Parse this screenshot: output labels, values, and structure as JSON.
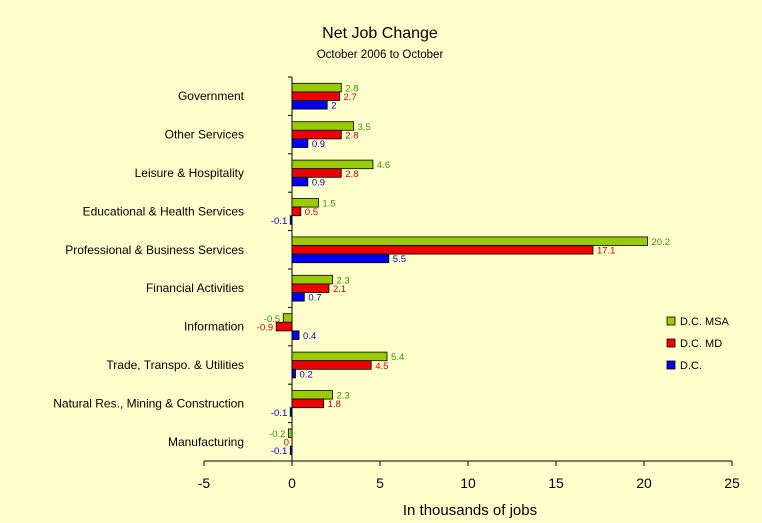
{
  "chart_data": {
    "type": "bar",
    "orientation": "horizontal",
    "title": "Net Job Change",
    "subtitle": "October 2006 to October",
    "xlabel": "In thousands of jobs",
    "ylabel": "",
    "xlim": [
      -5,
      25
    ],
    "xticks": [
      "-5",
      "0",
      "5",
      "10",
      "15",
      "20",
      "25"
    ],
    "grid": false,
    "legend_position": "right",
    "categories": [
      "Government",
      "Other Services",
      "Leisure & Hospitality",
      "Educational & Health Services",
      "Professional & Business Services",
      "Financial Activities",
      "Information",
      "Trade, Transpo. & Utilities",
      "Natural Res., Mining & Construction",
      "Manufacturing"
    ],
    "series": [
      {
        "name": "D.C. MSA",
        "color": "#99cc00",
        "label_color": "#339900",
        "values": [
          2.8,
          3.5,
          4.6,
          1.5,
          20.2,
          2.3,
          -0.5,
          5.4,
          2.3,
          -0.2
        ]
      },
      {
        "name": "D.C. MD",
        "color": "#ee0000",
        "label_color": "#cc0000",
        "values": [
          2.7,
          2.8,
          2.8,
          0.5,
          17.1,
          2.1,
          -0.9,
          4.5,
          1.8,
          0
        ]
      },
      {
        "name": "D.C.",
        "color": "#0000ee",
        "label_color": "#0000cc",
        "values": [
          2,
          0.9,
          0.9,
          -0.1,
          5.5,
          0.7,
          0.4,
          0.2,
          -0.1,
          -0.1
        ]
      }
    ],
    "background_color": "#ffffcc"
  }
}
